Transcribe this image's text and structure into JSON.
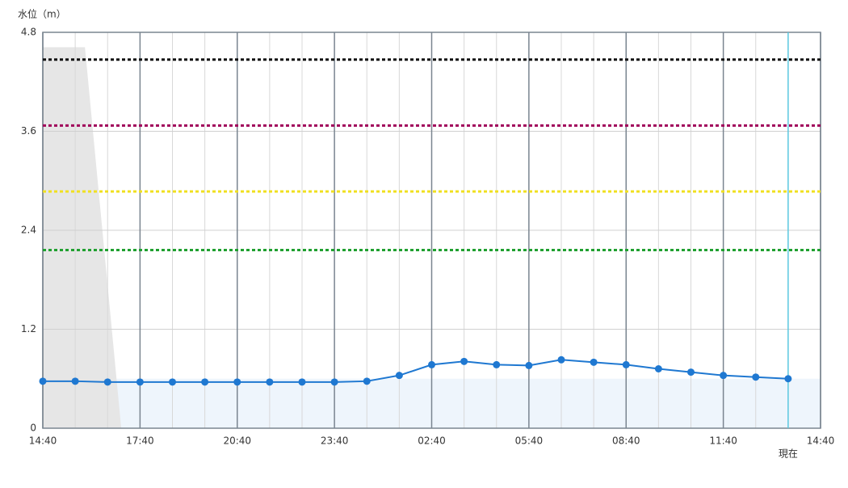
{
  "chart_data": {
    "type": "line",
    "y_label": "水位（m）",
    "x": [
      0,
      1,
      2,
      3,
      4,
      5,
      6,
      7,
      8,
      9,
      10,
      11,
      12,
      13,
      14,
      15,
      16,
      17,
      18,
      19,
      20,
      21,
      22,
      23
    ],
    "series": [
      {
        "color": "#1f78d1",
        "values": [
          0.57,
          0.57,
          0.56,
          0.56,
          0.56,
          0.56,
          0.56,
          0.56,
          0.56,
          0.56,
          0.57,
          0.64,
          0.77,
          0.81,
          0.77,
          0.76,
          0.83,
          0.8,
          0.77,
          0.72,
          0.68,
          0.64,
          0.62,
          0.6
        ]
      }
    ],
    "xlim": [
      0,
      24
    ],
    "xticks": [
      {
        "value": 0,
        "label": "14:40"
      },
      {
        "value": 3,
        "label": "17:40"
      },
      {
        "value": 6,
        "label": "20:40"
      },
      {
        "value": 9,
        "label": "23:40"
      },
      {
        "value": 12,
        "label": "02:40"
      },
      {
        "value": 15,
        "label": "05:40"
      },
      {
        "value": 18,
        "label": "08:40"
      },
      {
        "value": 21,
        "label": "11:40"
      },
      {
        "value": 24,
        "label": "14:40"
      }
    ],
    "minor_xticks": [
      1,
      2,
      4,
      5,
      7,
      8,
      10,
      11,
      13,
      14,
      16,
      17,
      19,
      20,
      22,
      23
    ],
    "ylim": [
      0,
      4.8
    ],
    "yticks": [
      0,
      1.2,
      2.4,
      3.6,
      4.8
    ],
    "grid": true,
    "reference_lines": [
      {
        "value": 4.47,
        "color": "#111111"
      },
      {
        "value": 3.67,
        "color": "#a0005a"
      },
      {
        "value": 2.87,
        "color": "#f0e020"
      },
      {
        "value": 2.16,
        "color": "#20a030"
      }
    ],
    "shaded_area": {
      "x": [
        0,
        1.3,
        2.42
      ],
      "values": [
        4.62,
        4.62,
        0
      ],
      "color": "#e6e6e6"
    },
    "now_marker": {
      "x": 23,
      "label": "現在",
      "color": "#5bc8e0"
    },
    "level_fill_color": "#eef5fc"
  }
}
